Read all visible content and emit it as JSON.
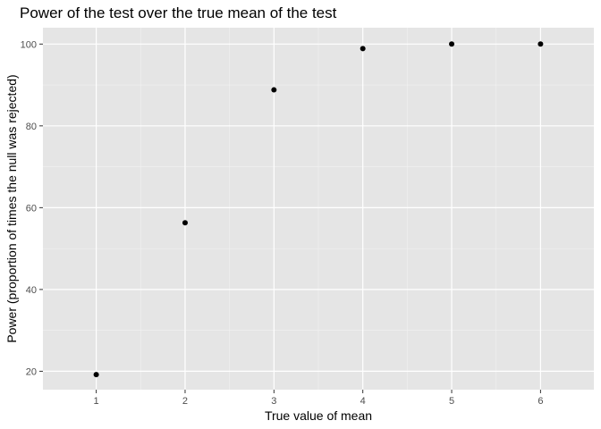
{
  "chart_data": {
    "type": "scatter",
    "title": "Power of the test over the true mean of the test",
    "xlabel": "True value of mean",
    "ylabel": "Power (proportion of times the null was rejected)",
    "x": [
      1,
      2,
      3,
      4,
      5,
      6
    ],
    "y": [
      19.2,
      56.3,
      88.8,
      98.9,
      100,
      100
    ],
    "xlim": [
      0.4,
      6.6
    ],
    "ylim": [
      15.5,
      104
    ],
    "xticks": [
      1,
      2,
      3,
      4,
      5,
      6
    ],
    "xtick_labels": [
      "1",
      "2",
      "3",
      "4",
      "5",
      "6"
    ],
    "yticks": [
      20,
      40,
      60,
      80,
      100
    ],
    "ytick_labels": [
      "20",
      "40",
      "60",
      "80",
      "100"
    ],
    "grid": true,
    "legend": "none",
    "colors": {
      "panel_background": "#e5e5e5",
      "grid_major": "#ffffff",
      "grid_minor": "#f2f2f2",
      "point": "#000000",
      "tick_mark": "#333333",
      "tick_text": "#4d4d4d"
    }
  }
}
